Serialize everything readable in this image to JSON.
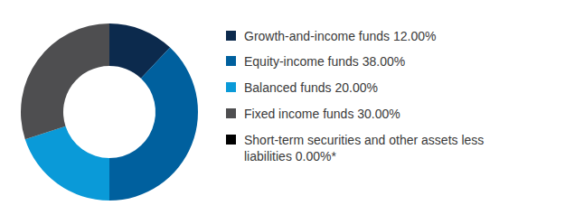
{
  "chart_data": {
    "type": "pie",
    "categories": [
      "Growth-and-income funds",
      "Equity-income funds",
      "Balanced funds",
      "Fixed income funds",
      "Short-term securities and other assets less liabilities"
    ],
    "values": [
      12,
      38,
      20,
      30,
      0
    ],
    "value_labels": [
      "12.00%",
      "38.00%",
      "20.00%",
      "30.00%",
      "0.00%*"
    ],
    "colors": [
      "#0c2a4d",
      "#00609e",
      "#0a9ad8",
      "#4e4e50",
      "#000000"
    ],
    "legend": "right"
  }
}
